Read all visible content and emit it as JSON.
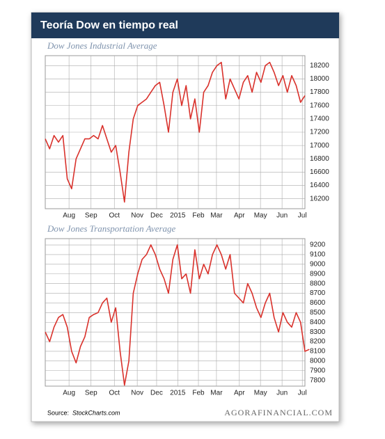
{
  "header": {
    "title": "Teoría Dow en tiempo real"
  },
  "footer": {
    "source_label": "Source:",
    "source": "StockCharts.com",
    "brand": "AGORAFINANCIAL.COM"
  },
  "chart_data": [
    {
      "type": "line",
      "title": "Dow Jones Industrial Average",
      "color": "#d9312b",
      "grid": true,
      "xlim": [
        0,
        59
      ],
      "ylim": [
        16050,
        18350
      ],
      "xticks": [
        {
          "value": 5.4,
          "label": "Aug"
        },
        {
          "value": 10.4,
          "label": "Sep"
        },
        {
          "value": 15.7,
          "label": "Oct"
        },
        {
          "value": 20.9,
          "label": "Nov"
        },
        {
          "value": 25.3,
          "label": "Dec"
        },
        {
          "value": 30.1,
          "label": "2015"
        },
        {
          "value": 34.8,
          "label": "Feb"
        },
        {
          "value": 38.9,
          "label": "Mar"
        },
        {
          "value": 44.1,
          "label": "Apr"
        },
        {
          "value": 48.9,
          "label": "May"
        },
        {
          "value": 53.8,
          "label": "Jun"
        },
        {
          "value": 58.4,
          "label": "Jul"
        }
      ],
      "yticks": [
        16200,
        16400,
        16600,
        16800,
        17000,
        17200,
        17400,
        17600,
        17800,
        18000,
        18200
      ],
      "values": [
        17100,
        16950,
        17150,
        17050,
        17150,
        16500,
        16350,
        16800,
        16950,
        17100,
        17100,
        17150,
        17100,
        17300,
        17100,
        16900,
        17000,
        16600,
        16150,
        16900,
        17400,
        17600,
        17650,
        17700,
        17800,
        17900,
        17950,
        17600,
        17200,
        17800,
        18000,
        17600,
        17900,
        17400,
        17700,
        17200,
        17800,
        17900,
        18100,
        18200,
        18250,
        17700,
        18000,
        17850,
        17700,
        17950,
        18050,
        17800,
        18100,
        17950,
        18200,
        18250,
        18100,
        17900,
        18050,
        17800,
        18050,
        17900,
        17650,
        17750
      ]
    },
    {
      "type": "line",
      "title": "Dow Jones Transportation Average",
      "color": "#d9312b",
      "grid": true,
      "xlim": [
        0,
        59
      ],
      "ylim": [
        7740,
        9265
      ],
      "xticks": [
        {
          "value": 5.4,
          "label": "Aug"
        },
        {
          "value": 10.4,
          "label": "Sep"
        },
        {
          "value": 15.7,
          "label": "Oct"
        },
        {
          "value": 20.9,
          "label": "Nov"
        },
        {
          "value": 25.3,
          "label": "Dec"
        },
        {
          "value": 30.1,
          "label": "2015"
        },
        {
          "value": 34.8,
          "label": "Feb"
        },
        {
          "value": 38.9,
          "label": "Mar"
        },
        {
          "value": 44.1,
          "label": "Apr"
        },
        {
          "value": 48.9,
          "label": "May"
        },
        {
          "value": 53.8,
          "label": "Jun"
        },
        {
          "value": 58.4,
          "label": "Jul"
        }
      ],
      "yticks": [
        7800,
        7900,
        8000,
        8100,
        8200,
        8300,
        8400,
        8500,
        8600,
        8700,
        8800,
        8900,
        9000,
        9100,
        9200
      ],
      "values": [
        8300,
        8200,
        8350,
        8450,
        8480,
        8350,
        8100,
        7980,
        8150,
        8250,
        8450,
        8480,
        8500,
        8600,
        8650,
        8400,
        8550,
        8100,
        7750,
        8000,
        8700,
        8900,
        9050,
        9100,
        9200,
        9100,
        8950,
        8850,
        8700,
        9050,
        9200,
        8850,
        8900,
        8700,
        9150,
        8850,
        9000,
        8900,
        9100,
        9200,
        9100,
        8950,
        9100,
        8700,
        8650,
        8600,
        8800,
        8700,
        8550,
        8450,
        8600,
        8700,
        8450,
        8300,
        8500,
        8400,
        8350,
        8500,
        8400,
        8100,
        8120
      ]
    }
  ]
}
